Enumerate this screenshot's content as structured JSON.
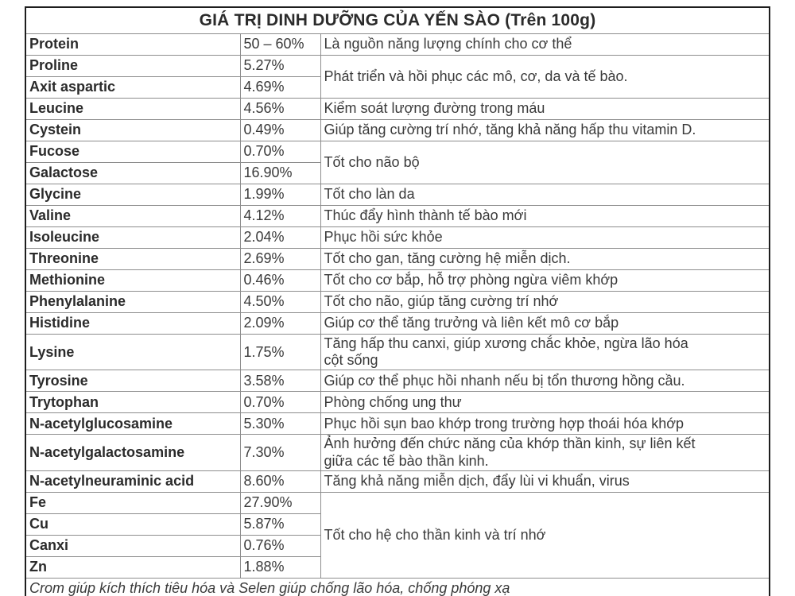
{
  "colors": {
    "background": "#ffffff",
    "text": "#333333",
    "border_outer": "#1e1e1e",
    "border_inner": "#8d8d8d"
  },
  "table": {
    "title": "GIÁ TRỊ DINH DƯỠNG CỦA YẾN SÀO (Trên 100g)",
    "footer": "Crom giúp kích thích tiêu hóa và Selen giúp chống lão hóa, chống phóng xạ",
    "rows": [
      {
        "name": "Protein",
        "value": "50 – 60%",
        "desc": "Là nguồn năng lượng chính cho cơ thể",
        "desc_rowspan": 1
      },
      {
        "name": "Proline",
        "value": "5.27%",
        "desc": "Phát triển và hồi phục các mô, cơ, da và tế bào.",
        "desc_rowspan": 2
      },
      {
        "name": "Axit aspartic",
        "value": "4.69%"
      },
      {
        "name": "Leucine",
        "value": "4.56%",
        "desc": "Kiểm soát lượng đường trong máu",
        "desc_rowspan": 1
      },
      {
        "name": "Cystein",
        "value": "0.49%",
        "desc": "Giúp tăng cường trí nhớ, tăng khả năng hấp thu vitamin D.",
        "desc_rowspan": 1
      },
      {
        "name": "Fucose",
        "value": "0.70%",
        "desc": "Tốt cho não bộ",
        "desc_rowspan": 2
      },
      {
        "name": "Galactose",
        "value": "16.90%"
      },
      {
        "name": "Glycine",
        "value": "1.99%",
        "desc": "Tốt cho làn da",
        "desc_rowspan": 1
      },
      {
        "name": "Valine",
        "value": "4.12%",
        "desc": "Thúc đẩy hình thành tế bào mới",
        "desc_rowspan": 1
      },
      {
        "name": "Isoleucine",
        "value": "2.04%",
        "desc": "Phục hồi sức khỏe",
        "desc_rowspan": 1
      },
      {
        "name": "Threonine",
        "value": "2.69%",
        "desc": "Tốt cho gan, tăng cường hệ miễn dịch.",
        "desc_rowspan": 1
      },
      {
        "name": "Methionine",
        "value": "0.46%",
        "desc": "Tốt cho cơ bắp, hỗ trợ phòng ngừa viêm khớp",
        "desc_rowspan": 1
      },
      {
        "name": "Phenylalanine",
        "value": "4.50%",
        "desc": "Tốt cho não, giúp tăng cường trí nhớ",
        "desc_rowspan": 1
      },
      {
        "name": "Histidine",
        "value": "2.09%",
        "desc": "Giúp cơ thể tăng trưởng và liên kết mô cơ bắp",
        "desc_rowspan": 1
      },
      {
        "name": "Lysine",
        "value": "1.75%",
        "desc": "Tăng hấp thu canxi, giúp xương chắc khỏe, ngừa lão hóa\ncột sống",
        "desc_rowspan": 1
      },
      {
        "name": "Tyrosine",
        "value": "3.58%",
        "desc": "Giúp cơ thể phục hồi nhanh nếu bị tổn thương hồng cầu.",
        "desc_rowspan": 1
      },
      {
        "name": "Trytophan",
        "value": "0.70%",
        "desc": "Phòng chống ung thư",
        "desc_rowspan": 1
      },
      {
        "name": "N-acetylglucosamine",
        "value": "5.30%",
        "desc": "Phục hồi sụn bao khớp trong trường hợp thoái hóa khớp",
        "desc_rowspan": 1
      },
      {
        "name": "N-acetylgalactosamine",
        "value": "7.30%",
        "desc": "Ảnh hưởng đến chức năng của khớp thần kinh, sự liên kết\ngiữa các tế bào thần kinh.",
        "desc_rowspan": 1
      },
      {
        "name": "N-acetylneuraminic acid",
        "value": "8.60%",
        "desc": "Tăng khả năng miễn dịch, đẩy lùi vi khuẩn, virus",
        "desc_rowspan": 1
      },
      {
        "name": "Fe",
        "value": "27.90%",
        "desc": "Tốt cho hệ cho thần kinh và trí nhớ",
        "desc_rowspan": 4
      },
      {
        "name": "Cu",
        "value": "5.87%"
      },
      {
        "name": "Canxi",
        "value": "0.76%"
      },
      {
        "name": "Zn",
        "value": "1.88%"
      }
    ]
  }
}
